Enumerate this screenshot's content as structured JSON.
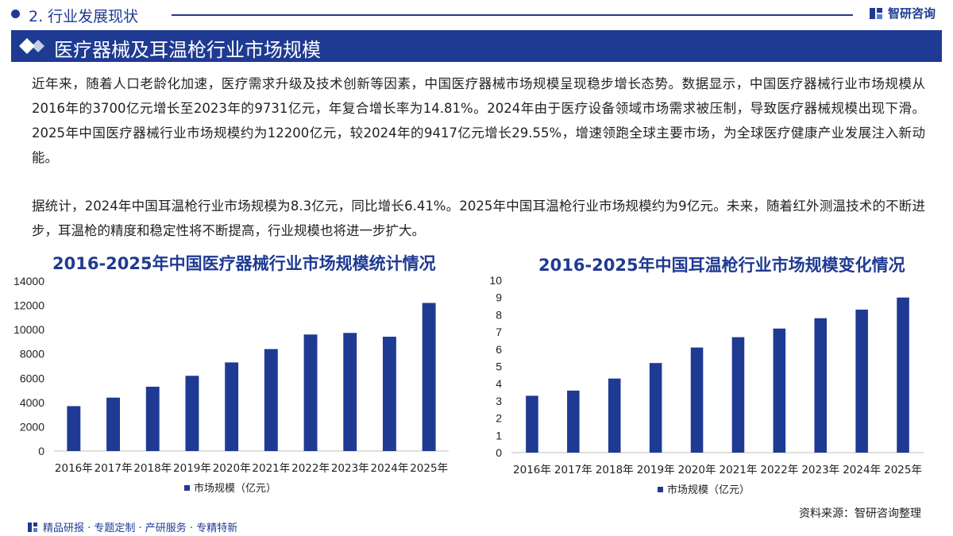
{
  "header": {
    "section_label": "2. 行业发展现状",
    "brand": "智研咨询",
    "title": "医疗器械及耳温枪行业市场规模"
  },
  "paragraphs": {
    "p1": "近年来，随着人口老龄化加速，医疗需求升级及技术创新等因素，中国医疗器械市场规模呈现稳步增长态势。数据显示，中国医疗器械行业市场规模从2016年的3700亿元增长至2023年的9731亿元，年复合增长率为14.81%。2024年由于医疗设备领域市场需求被压制，导致医疗器械规模出现下滑。2025年中国医疗器械行业市场规模约为12200亿元，较2024年的9417亿元增长29.55%，增速领跑全球主要市场，为全球医疗健康产业发展注入新动能。",
    "p2": "据统计，2024年中国耳温枪行业市场规模为8.3亿元，同比增长6.41%。2025年中国耳温枪行业市场规模约为9亿元。未来，随着红外测温技术的不断进步，耳温枪的精度和稳定性将不断提高，行业规模也将进一步扩大。"
  },
  "colors": {
    "brand": "#1f3a93",
    "bar": "#1f3a93"
  },
  "chart_data": [
    {
      "type": "bar",
      "title": "2016-2025年中国医疗器械行业市场规模统计情况",
      "categories": [
        "2016年",
        "2017年",
        "2018年",
        "2019年",
        "2020年",
        "2021年",
        "2022年",
        "2023年",
        "2024年",
        "2025年"
      ],
      "series": [
        {
          "name": "市场规模（亿元）",
          "values": [
            3700,
            4400,
            5300,
            6200,
            7300,
            8400,
            9600,
            9731,
            9417,
            12200
          ]
        }
      ],
      "ylim": [
        0,
        14000
      ],
      "yticks": [
        0,
        2000,
        4000,
        6000,
        8000,
        10000,
        12000,
        14000
      ],
      "legend": "bottom",
      "grid": false
    },
    {
      "type": "bar",
      "title": "2016-2025年中国耳温枪行业市场规模变化情况",
      "categories": [
        "2016年",
        "2017年",
        "2018年",
        "2019年",
        "2020年",
        "2021年",
        "2022年",
        "2023年",
        "2024年",
        "2025年"
      ],
      "series": [
        {
          "name": "市场规模（亿元）",
          "values": [
            3.3,
            3.6,
            4.3,
            5.2,
            6.1,
            6.7,
            7.2,
            7.8,
            8.3,
            9.0
          ]
        }
      ],
      "ylim": [
        0,
        10
      ],
      "yticks": [
        0,
        1,
        2,
        3,
        4,
        5,
        6,
        7,
        8,
        9,
        10
      ],
      "legend": "bottom",
      "grid": false
    }
  ],
  "source": "资料来源：智研咨询整理",
  "footer": "精品研报 · 专题定制 · 产研服务 · 专精特新"
}
